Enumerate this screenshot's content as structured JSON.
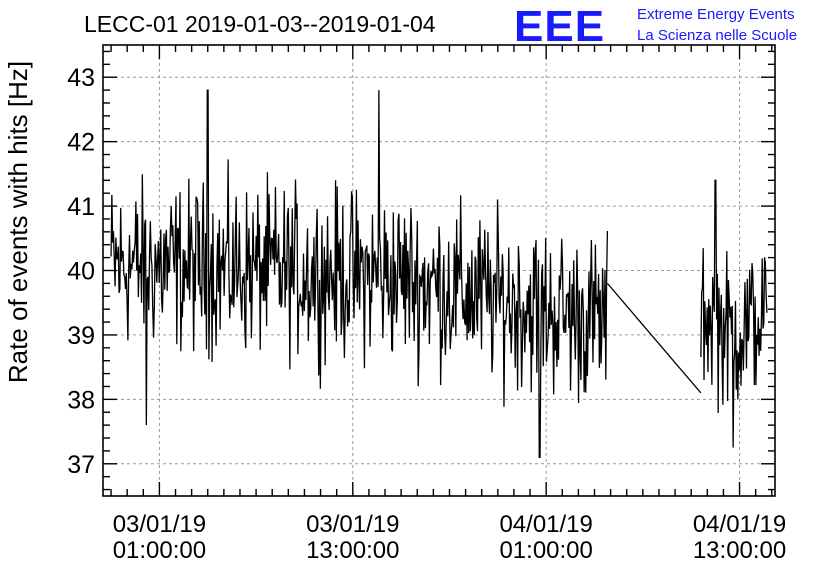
{
  "chart_data": {
    "type": "line",
    "title": "LECC-01 2019-01-03--2019-01-04",
    "xlabel": "",
    "ylabel": "Rate of events with hits [Hz]",
    "ylim": [
      36.5,
      43.5
    ],
    "yticks": [
      37,
      38,
      39,
      40,
      41,
      42,
      43
    ],
    "ytick_labels": [
      "37",
      "38",
      "39",
      "40",
      "41",
      "42",
      "43"
    ],
    "xlim_hours_from_0000_03jan2019": [
      -2.5,
      39.2
    ],
    "xticks": [
      {
        "hour": 1,
        "line1": "03/01/19",
        "line2": "01:00:00"
      },
      {
        "hour": 13,
        "line1": "03/01/19",
        "line2": "13:00:00"
      },
      {
        "hour": 25,
        "line1": "04/01/19",
        "line2": "01:00:00"
      },
      {
        "hour": 37,
        "line1": "04/01/19",
        "line2": "13:00:00"
      }
    ],
    "grid": true,
    "series": [
      {
        "name": "",
        "color": "#000000",
        "segments": [
          {
            "start_hour": -2.0,
            "end_hour": 28.8,
            "trend": [
              [
                -2.0,
                40.1
              ],
              [
                8.0,
                40.0
              ],
              [
                16.0,
                39.9
              ],
              [
                21.0,
                39.6
              ],
              [
                28.8,
                39.2
              ]
            ],
            "noise_amplitude": 1.1,
            "samples": 620
          },
          {
            "start_hour": 28.8,
            "end_hour": 34.6,
            "trend": [
              [
                28.8,
                39.8
              ],
              [
                34.6,
                38.1
              ]
            ],
            "noise_amplitude": 0,
            "samples": 2
          },
          {
            "start_hour": 34.6,
            "end_hour": 38.7,
            "trend": [
              [
                34.6,
                39.4
              ],
              [
                36.5,
                39.0
              ],
              [
                38.7,
                39.3
              ]
            ],
            "noise_amplitude": 1.0,
            "samples": 85
          }
        ],
        "extremes": [
          {
            "hour": 0.2,
            "value": 37.6
          },
          {
            "hour": 4.0,
            "value": 42.8
          },
          {
            "hour": 14.6,
            "value": 42.8
          },
          {
            "hour": 24.6,
            "value": 37.1
          },
          {
            "hour": 36.6,
            "value": 37.25
          },
          {
            "hour": 35.5,
            "value": 41.4
          }
        ]
      }
    ]
  },
  "logo": {
    "mark": "EEE",
    "line1": "Extreme Energy Events",
    "line2": "La Scienza nelle Scuole",
    "color": "#1a1aff"
  }
}
